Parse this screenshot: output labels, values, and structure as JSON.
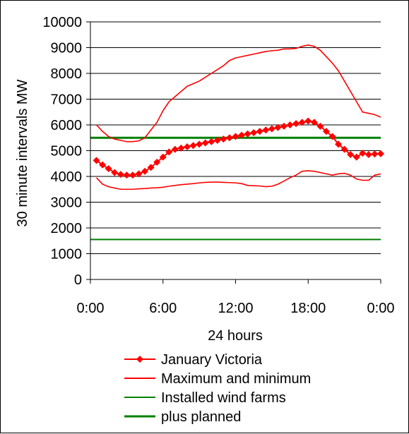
{
  "chart_data": {
    "type": "line",
    "title": "",
    "xlabel": "24 hours",
    "ylabel": "30 minute intervals MW",
    "ylim": [
      0,
      10000
    ],
    "yticks": [
      0,
      1000,
      2000,
      3000,
      4000,
      5000,
      6000,
      7000,
      8000,
      9000,
      10000
    ],
    "xlim": [
      0,
      24
    ],
    "xticks": [
      {
        "value": 0,
        "label": "0:00"
      },
      {
        "value": 6,
        "label": "6:00"
      },
      {
        "value": 12,
        "label": "12:00"
      },
      {
        "value": 18,
        "label": "18:00"
      },
      {
        "value": 24,
        "label": "0:00"
      }
    ],
    "grid": "horizontal",
    "legend_position": "bottom",
    "series": [
      {
        "name": "January Victoria",
        "color": "#ff0000",
        "marker": "diamond",
        "x": [
          0.5,
          1,
          1.5,
          2,
          2.5,
          3,
          3.5,
          4,
          4.5,
          5,
          5.5,
          6,
          6.5,
          7,
          7.5,
          8,
          8.5,
          9,
          9.5,
          10,
          10.5,
          11,
          11.5,
          12,
          12.5,
          13,
          13.5,
          14,
          14.5,
          15,
          15.5,
          16,
          16.5,
          17,
          17.5,
          18,
          18.5,
          19,
          19.5,
          20,
          20.5,
          21,
          21.5,
          22,
          22.5,
          23,
          23.5,
          24
        ],
        "y": [
          4620,
          4450,
          4300,
          4150,
          4080,
          4050,
          4050,
          4100,
          4200,
          4350,
          4550,
          4750,
          4950,
          5050,
          5100,
          5150,
          5200,
          5250,
          5300,
          5350,
          5400,
          5450,
          5500,
          5550,
          5600,
          5650,
          5700,
          5750,
          5800,
          5850,
          5900,
          5950,
          6000,
          6050,
          6100,
          6150,
          6100,
          5950,
          5750,
          5550,
          5250,
          5050,
          4850,
          4750,
          4900,
          4850,
          4870,
          4880
        ]
      },
      {
        "name": "Maximum and minimum",
        "color": "#ff0000",
        "marker": "none",
        "lines": [
          {
            "x": [
              0.5,
              1,
              1.5,
              2,
              2.5,
              3,
              3.5,
              4,
              4.5,
              5,
              5.5,
              6,
              6.5,
              7,
              7.5,
              8,
              8.5,
              9,
              9.5,
              10,
              10.5,
              11,
              11.5,
              12,
              12.5,
              13,
              13.5,
              14,
              14.5,
              15,
              15.5,
              16,
              16.5,
              17,
              17.5,
              18,
              18.5,
              19,
              19.5,
              20,
              20.5,
              21,
              21.5,
              22,
              22.5,
              23,
              23.5,
              24
            ],
            "y": [
              6000,
              5750,
              5550,
              5450,
              5400,
              5350,
              5350,
              5380,
              5500,
              5800,
              6100,
              6550,
              6900,
              7100,
              7300,
              7500,
              7600,
              7700,
              7850,
              8000,
              8150,
              8300,
              8500,
              8600,
              8650,
              8700,
              8750,
              8800,
              8850,
              8880,
              8900,
              8950,
              8950,
              8970,
              9050,
              9100,
              9050,
              8900,
              8650,
              8400,
              8100,
              7700,
              7300,
              6900,
              6500,
              6450,
              6400,
              6300
            ]
          },
          {
            "x": [
              0.5,
              1,
              1.5,
              2,
              2.5,
              3,
              3.5,
              4,
              4.5,
              5,
              5.5,
              6,
              6.5,
              7,
              7.5,
              8,
              8.5,
              9,
              9.5,
              10,
              10.5,
              11,
              11.5,
              12,
              12.5,
              13,
              13.5,
              14,
              14.5,
              15,
              15.5,
              16,
              16.5,
              17,
              17.5,
              18,
              18.5,
              19,
              19.5,
              20,
              20.5,
              21,
              21.5,
              22,
              22.5,
              23,
              23.5,
              24
            ],
            "y": [
              3950,
              3700,
              3600,
              3550,
              3500,
              3500,
              3500,
              3520,
              3530,
              3550,
              3560,
              3580,
              3620,
              3650,
              3680,
              3700,
              3720,
              3750,
              3770,
              3780,
              3780,
              3770,
              3760,
              3750,
              3720,
              3650,
              3640,
              3630,
              3600,
              3620,
              3700,
              3820,
              3950,
              4050,
              4200,
              4220,
              4200,
              4150,
              4100,
              4050,
              4100,
              4120,
              4050,
              3900,
              3850,
              3850,
              4050,
              4100
            ]
          }
        ]
      },
      {
        "name": "Installed wind farms",
        "color": "#008000",
        "marker": "none",
        "value": 1550
      },
      {
        "name": "plus planned",
        "color": "#008000",
        "marker": "none",
        "value": 5500
      }
    ]
  }
}
